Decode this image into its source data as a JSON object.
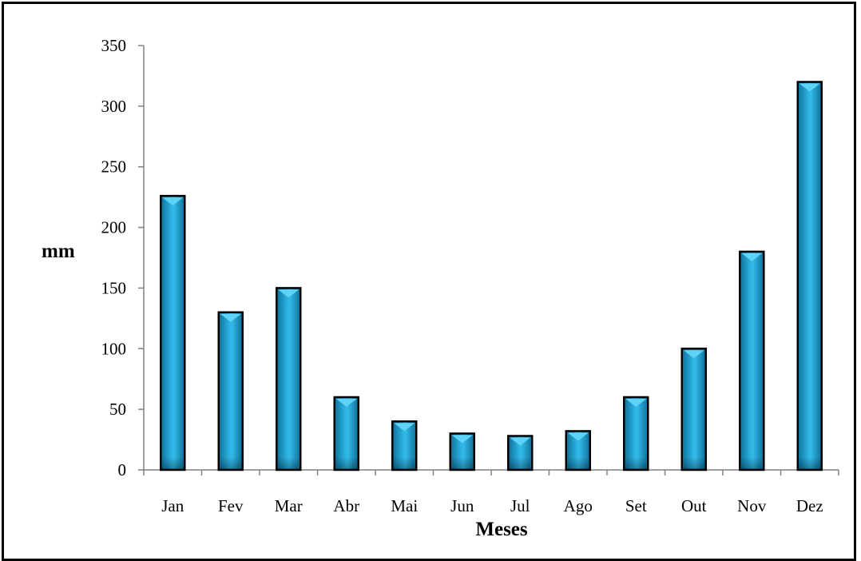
{
  "chart_data": {
    "type": "bar",
    "title": "",
    "xlabel": "Meses",
    "ylabel": "mm",
    "categories": [
      "Jan",
      "Fev",
      "Mar",
      "Abr",
      "Mai",
      "Jun",
      "Jul",
      "Ago",
      "Set",
      "Out",
      "Nov",
      "Dez"
    ],
    "values": [
      226,
      130,
      150,
      60,
      40,
      30,
      28,
      32,
      60,
      100,
      180,
      320
    ],
    "ylim": [
      0,
      350
    ],
    "yticks": [
      0,
      50,
      100,
      150,
      200,
      250,
      300,
      350
    ],
    "grid": false,
    "legend": "none",
    "colors": {
      "bar_fill": "#1fa6d8",
      "bar_dark": "#0e6f99",
      "bar_light": "#5fd3f5",
      "bar_outline": "#000000",
      "axis": "#808080"
    }
  }
}
